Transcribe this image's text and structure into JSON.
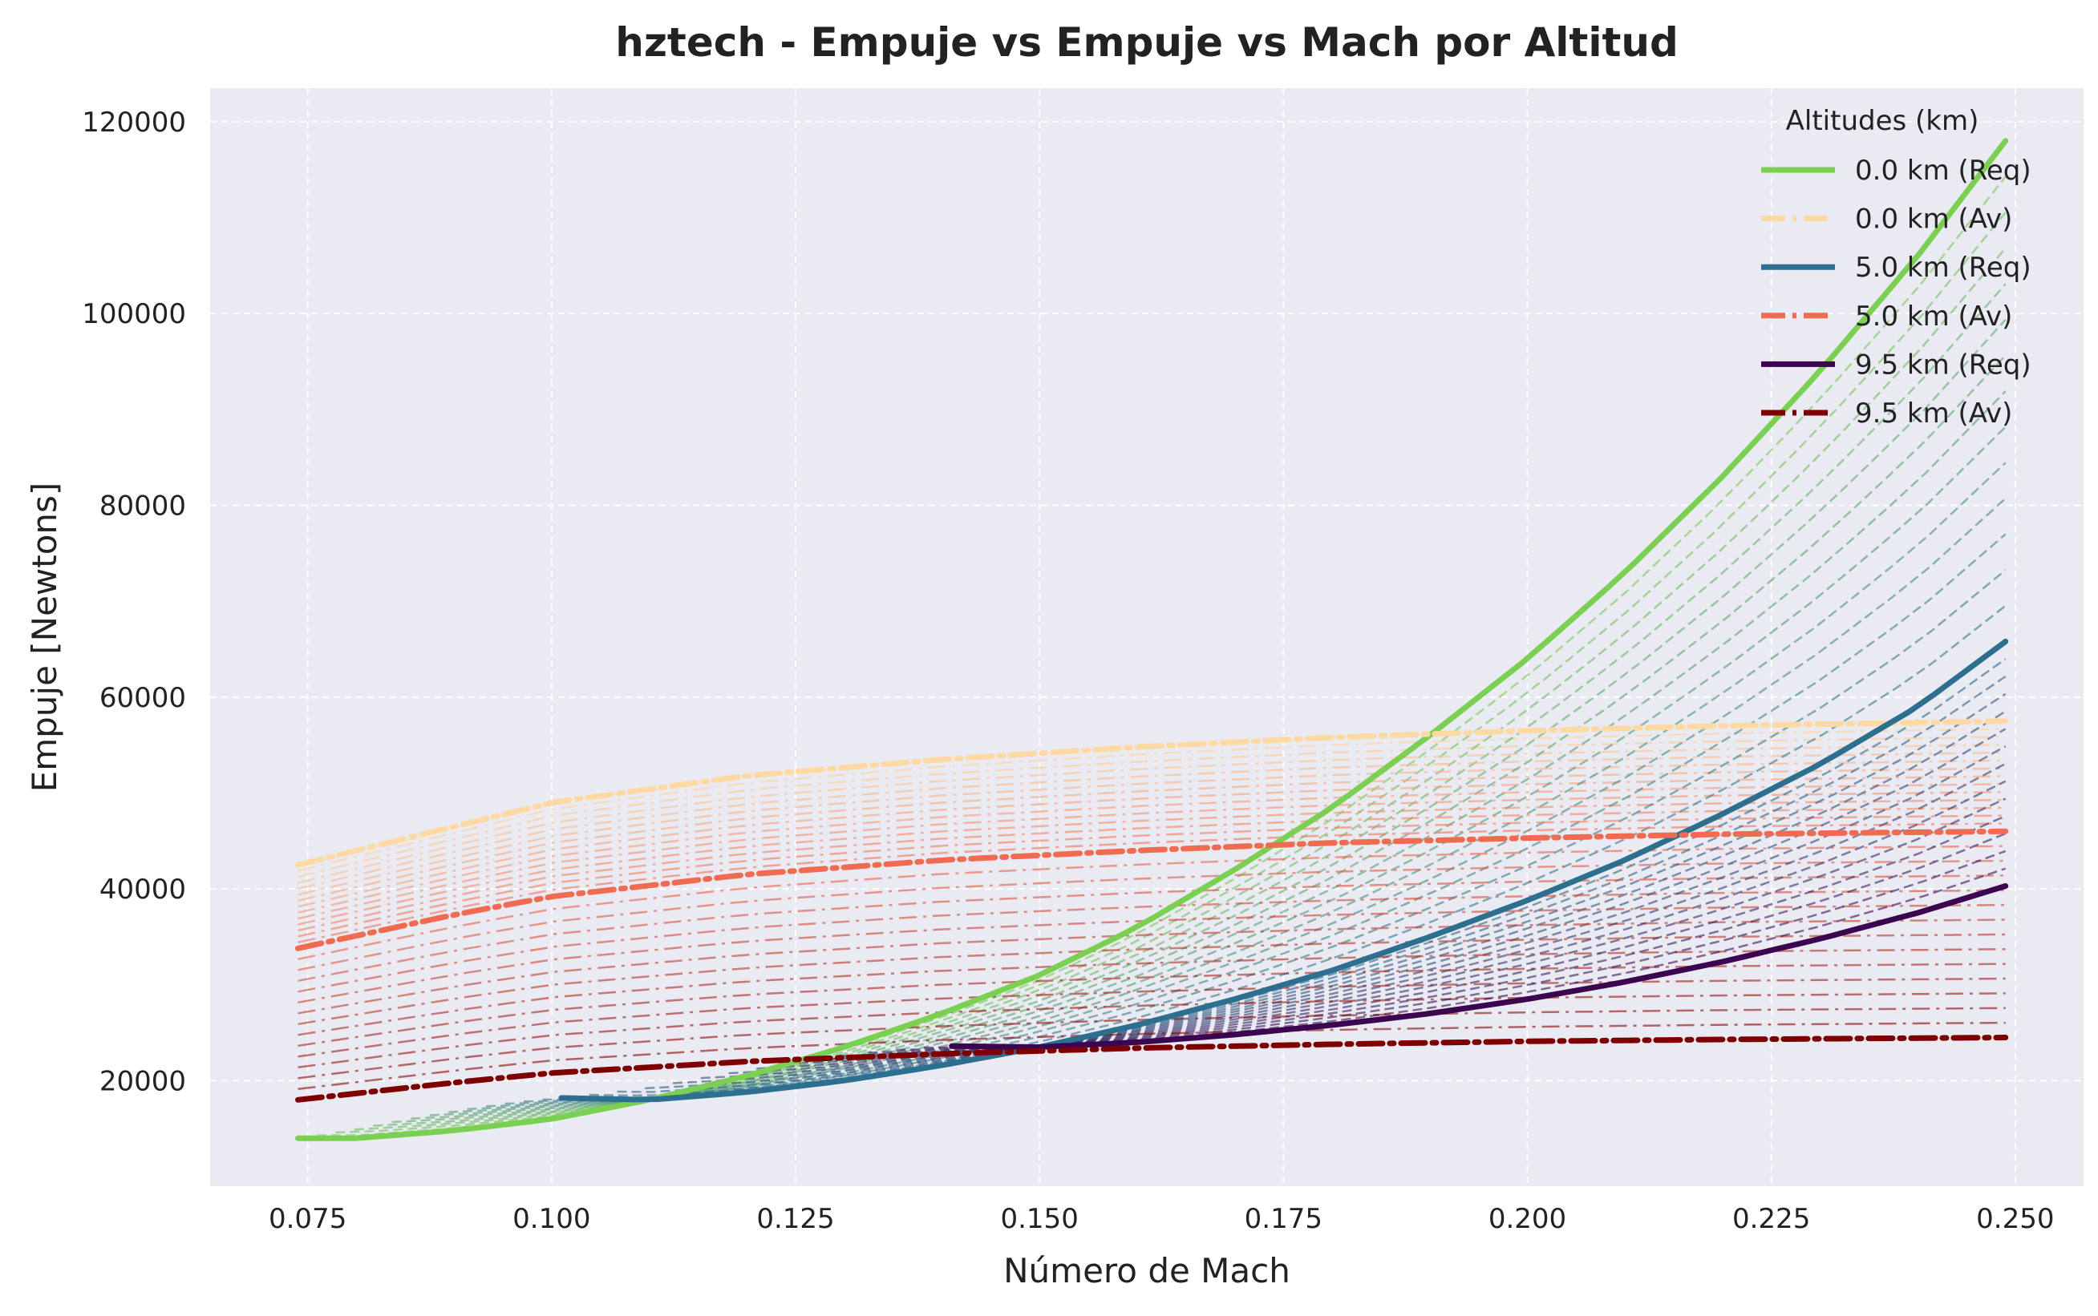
{
  "chart_data": {
    "type": "line",
    "title": "hztech - Empuje vs Empuje vs Mach por Altitud",
    "xlabel": "Número de Mach",
    "ylabel": "Empuje [Newtons]",
    "xlim": [
      0.065,
      0.257
    ],
    "ylim": [
      9000,
      123500
    ],
    "xticks": [
      0.075,
      0.1,
      0.125,
      0.15,
      0.175,
      0.2,
      0.225,
      0.25
    ],
    "xtick_labels": [
      "0.075",
      "0.100",
      "0.125",
      "0.150",
      "0.175",
      "0.200",
      "0.225",
      "0.250"
    ],
    "yticks": [
      20000,
      40000,
      60000,
      80000,
      100000,
      120000
    ],
    "ytick_labels": [
      "20000",
      "40000",
      "60000",
      "80000",
      "100000",
      "120000"
    ],
    "grid": true,
    "legend": {
      "title": "Altitudes (km)",
      "placement": "top-right",
      "entries": [
        {
          "label": "0.0 km (Req)",
          "color": "#7ad151",
          "style": "solid"
        },
        {
          "label": "0.0 km (Av)",
          "color": "#fdd9a3",
          "style": "dashdot"
        },
        {
          "label": "5.0 km (Req)",
          "color": "#2c6f8e",
          "style": "solid"
        },
        {
          "label": "5.0 km (Av)",
          "color": "#f06b50",
          "style": "dashdot"
        },
        {
          "label": "9.5 km (Req)",
          "color": "#3b0550",
          "style": "solid"
        },
        {
          "label": "9.5 km (Av)",
          "color": "#7f0000",
          "style": "dashdot"
        }
      ]
    },
    "series": [
      {
        "name": "0.0 km (Req)",
        "color": "#7ad151",
        "style": "solid",
        "x": [
          0.074,
          0.08,
          0.09,
          0.1,
          0.11,
          0.12,
          0.13,
          0.14,
          0.15,
          0.16,
          0.17,
          0.18,
          0.19,
          0.2,
          0.21,
          0.22,
          0.23,
          0.24,
          0.249
        ],
        "y": [
          14000,
          14000,
          14800,
          16000,
          18000,
          20500,
          23500,
          27000,
          31000,
          36000,
          42000,
          48500,
          56000,
          64000,
          73000,
          83000,
          94000,
          106000,
          118000
        ]
      },
      {
        "name": "0.0 km (Av)",
        "color": "#fdd9a3",
        "style": "dashdot",
        "x": [
          0.074,
          0.09,
          0.1,
          0.12,
          0.14,
          0.16,
          0.18,
          0.2,
          0.22,
          0.249
        ],
        "y": [
          42500,
          46500,
          49000,
          51800,
          53500,
          54800,
          55800,
          56500,
          57000,
          57500
        ]
      },
      {
        "name": "5.0 km (Req)",
        "color": "#2c6f8e",
        "style": "solid",
        "x": [
          0.101,
          0.11,
          0.12,
          0.13,
          0.14,
          0.15,
          0.16,
          0.17,
          0.18,
          0.19,
          0.2,
          0.21,
          0.22,
          0.23,
          0.24,
          0.249
        ],
        "y": [
          18200,
          18000,
          18800,
          20000,
          21600,
          23500,
          25800,
          28500,
          31500,
          35000,
          38800,
          43000,
          47800,
          53000,
          59000,
          65800
        ]
      },
      {
        "name": "5.0 km (Av)",
        "color": "#f06b50",
        "style": "dashdot",
        "x": [
          0.074,
          0.09,
          0.1,
          0.12,
          0.14,
          0.16,
          0.18,
          0.2,
          0.22,
          0.249
        ],
        "y": [
          33800,
          37300,
          39200,
          41500,
          43000,
          44000,
          44800,
          45300,
          45700,
          46000
        ]
      },
      {
        "name": "9.5 km (Req)",
        "color": "#3b0550",
        "style": "solid",
        "x": [
          0.141,
          0.15,
          0.16,
          0.17,
          0.18,
          0.19,
          0.2,
          0.21,
          0.22,
          0.23,
          0.24,
          0.249
        ],
        "y": [
          23600,
          23500,
          24000,
          24800,
          25800,
          27000,
          28500,
          30300,
          32400,
          34800,
          37500,
          40300
        ]
      },
      {
        "name": "9.5 km (Av)",
        "color": "#7f0000",
        "style": "dashdot",
        "x": [
          0.074,
          0.09,
          0.1,
          0.12,
          0.14,
          0.16,
          0.18,
          0.2,
          0.22,
          0.249
        ],
        "y": [
          18000,
          19800,
          20800,
          22000,
          22800,
          23400,
          23800,
          24100,
          24300,
          24500
        ]
      }
    ]
  }
}
